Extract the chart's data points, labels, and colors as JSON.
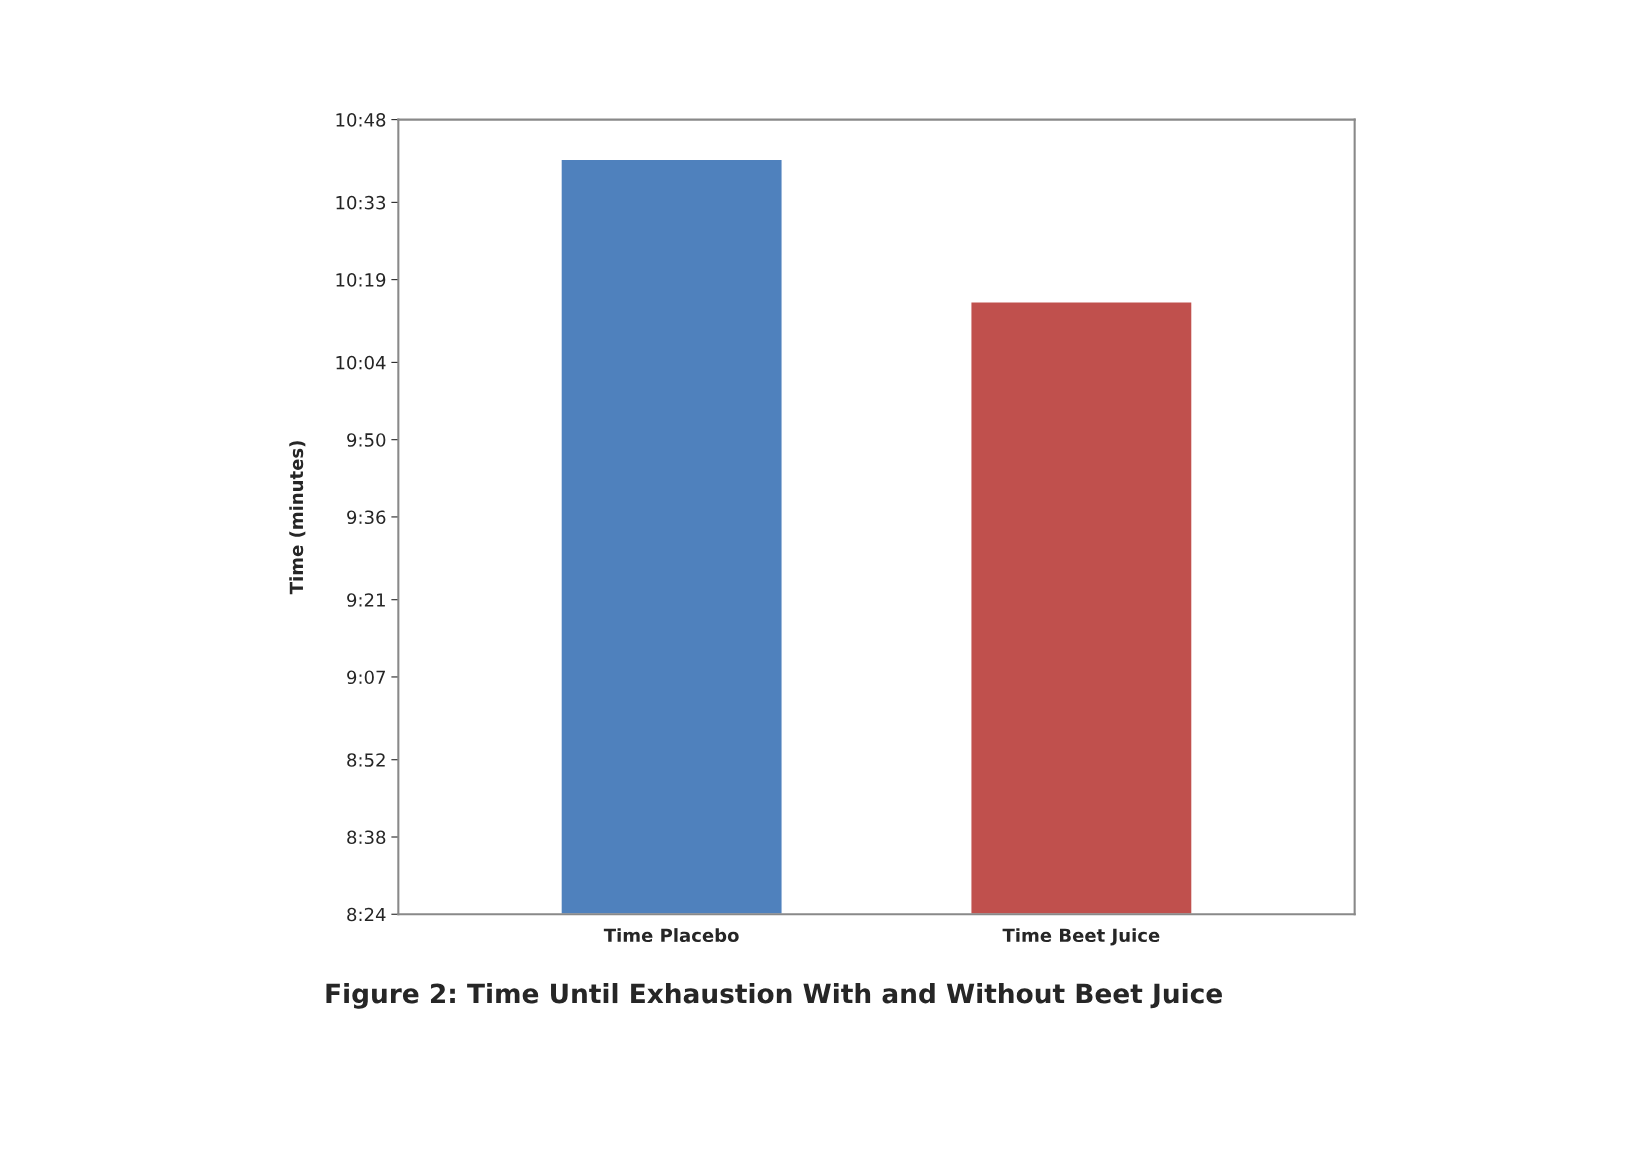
{
  "chart_data": {
    "type": "bar",
    "title": "Figure 2: Time Until Exhaustion With and Without Beet Juice",
    "ylabel": "Time (minutes)",
    "categories": [
      "Time Placebo",
      "Time Beet Juice"
    ],
    "series": [
      {
        "colors": [
          "#4f81bd",
          "#c0504d"
        ],
        "values": [
          10.68,
          10.25
        ]
      }
    ],
    "ylim": [
      8.4,
      10.8
    ],
    "yticks": [
      {
        "value": 8.4,
        "label": "8:24"
      },
      {
        "value": 8.6333,
        "label": "8:38"
      },
      {
        "value": 8.8667,
        "label": "8:52"
      },
      {
        "value": 9.1167,
        "label": "9:07"
      },
      {
        "value": 9.35,
        "label": "9:21"
      },
      {
        "value": 9.6,
        "label": "9:36"
      },
      {
        "value": 9.8333,
        "label": "9:50"
      },
      {
        "value": 10.0667,
        "label": "10:04"
      },
      {
        "value": 10.3167,
        "label": "10:19"
      },
      {
        "value": 10.55,
        "label": "10:33"
      },
      {
        "value": 10.8,
        "label": "10:48"
      }
    ],
    "grid": false,
    "legend": false
  }
}
